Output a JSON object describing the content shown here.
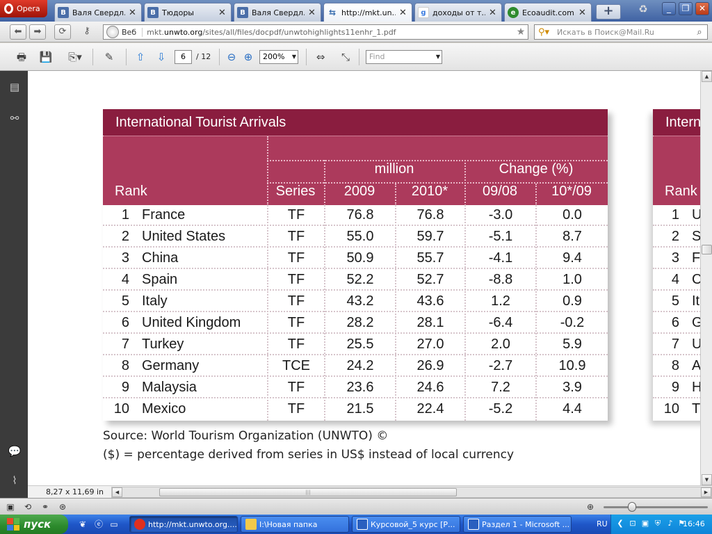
{
  "browser": {
    "menu_label": "Opera",
    "tabs": [
      {
        "label": "Валя Свердл…",
        "icon": "vk-icon",
        "active": false
      },
      {
        "label": "Тюдоры",
        "icon": "vk-icon",
        "active": false
      },
      {
        "label": "Валя Свердл…",
        "icon": "vk-icon",
        "active": false
      },
      {
        "label": "http://mkt.un…",
        "icon": "link-icon",
        "active": true
      },
      {
        "label": "доходы от т…",
        "icon": "google-icon",
        "active": false
      },
      {
        "label": "Ecoaudit.com.…",
        "icon": "ecoaudit-icon",
        "active": false
      }
    ],
    "colors": {
      "accent": "#8a1d3f",
      "header": "#ac3a5c",
      "taskbar": "#245edb"
    }
  },
  "address": {
    "web_label": "Веб",
    "url_prefix": "mkt.",
    "url_domain": "unwto.org",
    "url_rest": "/sites/all/files/docpdf/unwtohighlights11enhr_1.pdf",
    "search_placeholder": "Искать в Поиск@Mail.Ru"
  },
  "pdf_toolbar": {
    "page_current": "6",
    "page_total": "/ 12",
    "zoom": "200%",
    "find_placeholder": "Find"
  },
  "document": {
    "table_title": "International Tourist Arrivals",
    "table_title_cut": "Intern",
    "headers": {
      "rank": "Rank",
      "series": "Series",
      "million": "million",
      "change": "Change (%)",
      "y2009": "2009",
      "y2010": "2010*",
      "c0908": "09/08",
      "c1009": "10*/09"
    },
    "rows": [
      {
        "rank": "1",
        "country": "France",
        "series": "TF",
        "v2009": "76.8",
        "v2010": "76.8",
        "c0908": "-3.0",
        "c1009": "0.0"
      },
      {
        "rank": "2",
        "country": "United States",
        "series": "TF",
        "v2009": "55.0",
        "v2010": "59.7",
        "c0908": "-5.1",
        "c1009": "8.7"
      },
      {
        "rank": "3",
        "country": "China",
        "series": "TF",
        "v2009": "50.9",
        "v2010": "55.7",
        "c0908": "-4.1",
        "c1009": "9.4"
      },
      {
        "rank": "4",
        "country": "Spain",
        "series": "TF",
        "v2009": "52.2",
        "v2010": "52.7",
        "c0908": "-8.8",
        "c1009": "1.0"
      },
      {
        "rank": "5",
        "country": "Italy",
        "series": "TF",
        "v2009": "43.2",
        "v2010": "43.6",
        "c0908": "1.2",
        "c1009": "0.9"
      },
      {
        "rank": "6",
        "country": "United Kingdom",
        "series": "TF",
        "v2009": "28.2",
        "v2010": "28.1",
        "c0908": "-6.4",
        "c1009": "-0.2"
      },
      {
        "rank": "7",
        "country": "Turkey",
        "series": "TF",
        "v2009": "25.5",
        "v2010": "27.0",
        "c0908": "2.0",
        "c1009": "5.9"
      },
      {
        "rank": "8",
        "country": "Germany",
        "series": "TCE",
        "v2009": "24.2",
        "v2010": "26.9",
        "c0908": "-2.7",
        "c1009": "10.9"
      },
      {
        "rank": "9",
        "country": "Malaysia",
        "series": "TF",
        "v2009": "23.6",
        "v2010": "24.6",
        "c0908": "7.2",
        "c1009": "3.9"
      },
      {
        "rank": "10",
        "country": "Mexico",
        "series": "TF",
        "v2009": "21.5",
        "v2010": "22.4",
        "c0908": "-5.2",
        "c1009": "4.4"
      }
    ],
    "second_table_rows": [
      {
        "rank": "1",
        "initial": "U"
      },
      {
        "rank": "2",
        "initial": "Sp"
      },
      {
        "rank": "3",
        "initial": "Fr"
      },
      {
        "rank": "4",
        "initial": "C"
      },
      {
        "rank": "5",
        "initial": "It"
      },
      {
        "rank": "6",
        "initial": "G"
      },
      {
        "rank": "7",
        "initial": "U"
      },
      {
        "rank": "8",
        "initial": "A"
      },
      {
        "rank": "9",
        "initial": "H"
      },
      {
        "rank": "10",
        "initial": "Tu"
      }
    ],
    "source": "Source: World Tourism Organization (UNWTO) ©",
    "note": "($) = percentage derived from series in US$ instead of local currency"
  },
  "status": {
    "page_size": "8,27 x 11,69 in"
  },
  "taskbar": {
    "start_label": "пуск",
    "buttons": [
      {
        "label": "http://mkt.unwto.org....",
        "icon": "opera-icon",
        "active": true
      },
      {
        "label": "I:\\Новая папка",
        "icon": "folder-icon",
        "active": false
      },
      {
        "label": "Курсовой_5 курс [Р...",
        "icon": "word-icon",
        "active": false
      },
      {
        "label": "Раздел 1 - Microsoft ...",
        "icon": "word-icon",
        "active": false
      }
    ],
    "language": "RU",
    "clock": "16:46"
  }
}
